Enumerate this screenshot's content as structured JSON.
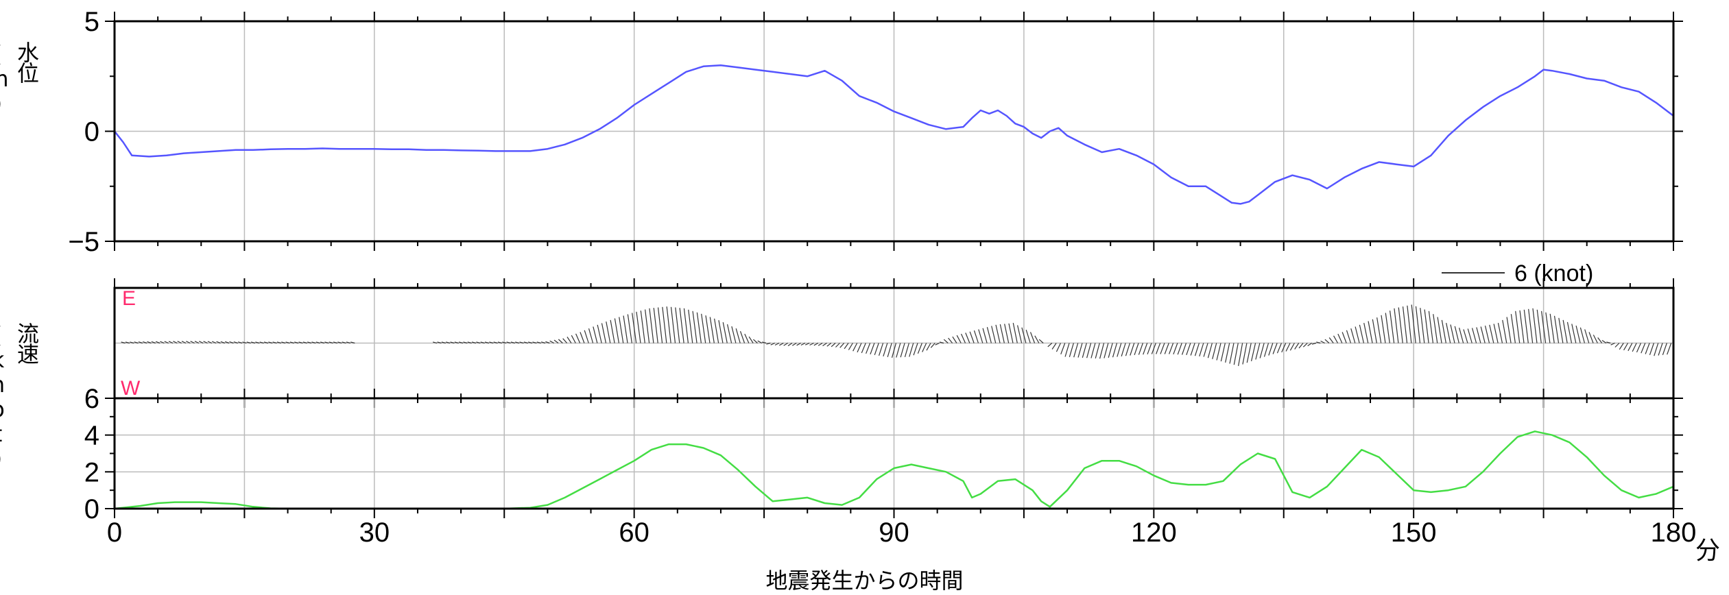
{
  "chart_data": [
    {
      "type": "line",
      "panel": "water-level",
      "ylabel": "水位 (m)",
      "ylim": [
        -5,
        5
      ],
      "yticks": [
        -5,
        0,
        5
      ],
      "ytick_labels": [
        "−5",
        "0",
        "5"
      ],
      "xlim": [
        0,
        180
      ],
      "color": "#5555ff",
      "series": [
        {
          "x": [
            0,
            1,
            2,
            4,
            6,
            8,
            10,
            12,
            14,
            16,
            18,
            20,
            22,
            24,
            26,
            28,
            30,
            32,
            34,
            36,
            38,
            40,
            42,
            44,
            46,
            48,
            50,
            52,
            54,
            56,
            58,
            60,
            62,
            64,
            66,
            68,
            70,
            72,
            74,
            76,
            78,
            80,
            82,
            84,
            86,
            88,
            90,
            92,
            94,
            96,
            98,
            99,
            100,
            101,
            102,
            103,
            104,
            105,
            106,
            107,
            108,
            109,
            110,
            112,
            114,
            116,
            118,
            120,
            122,
            124,
            126,
            128,
            129,
            130,
            131,
            132,
            134,
            136,
            138,
            140,
            142,
            144,
            146,
            148,
            150,
            152,
            154,
            156,
            158,
            160,
            162,
            164,
            165,
            166,
            168,
            170,
            172,
            174,
            176,
            178,
            180
          ],
          "y": [
            0,
            -0.5,
            -1.1,
            -1.15,
            -1.1,
            -1.0,
            -0.95,
            -0.9,
            -0.85,
            -0.85,
            -0.82,
            -0.8,
            -0.8,
            -0.78,
            -0.8,
            -0.8,
            -0.8,
            -0.82,
            -0.82,
            -0.85,
            -0.85,
            -0.87,
            -0.88,
            -0.9,
            -0.9,
            -0.9,
            -0.8,
            -0.6,
            -0.3,
            0.1,
            0.6,
            1.2,
            1.7,
            2.2,
            2.7,
            2.95,
            3.0,
            2.9,
            2.8,
            2.7,
            2.6,
            2.5,
            2.75,
            2.3,
            1.6,
            1.3,
            0.9,
            0.6,
            0.3,
            0.1,
            0.2,
            0.6,
            0.95,
            0.8,
            0.95,
            0.7,
            0.35,
            0.2,
            -0.1,
            -0.3,
            0.0,
            0.15,
            -0.2,
            -0.6,
            -0.95,
            -0.8,
            -1.1,
            -1.5,
            -2.1,
            -2.5,
            -2.5,
            -3.0,
            -3.25,
            -3.3,
            -3.2,
            -2.9,
            -2.3,
            -2.0,
            -2.2,
            -2.6,
            -2.1,
            -1.7,
            -1.4,
            -1.5,
            -1.6,
            -1.1,
            -0.2,
            0.5,
            1.1,
            1.6,
            2.0,
            2.5,
            2.8,
            2.75,
            2.6,
            2.4,
            2.3,
            2.0,
            1.8,
            1.3,
            0.7
          ]
        }
      ]
    },
    {
      "type": "bar",
      "panel": "current-direction",
      "ylabel": "流速 (knot)",
      "scale_label": "6 (knot)",
      "top_label": "E",
      "bottom_label": "W",
      "xlim": [
        0,
        180
      ],
      "color": "#333333",
      "label_color": "#ff2a6d",
      "x": [
        1,
        4,
        7,
        10,
        13,
        16,
        20,
        24,
        28,
        32,
        36,
        40,
        44,
        48,
        50,
        52,
        54,
        56,
        58,
        60,
        62,
        64,
        66,
        68,
        70,
        72,
        74,
        76,
        78,
        80,
        82,
        84,
        86,
        88,
        90,
        92,
        94,
        96,
        98,
        100,
        102,
        104,
        106,
        108,
        110,
        112,
        114,
        116,
        118,
        120,
        122,
        124,
        126,
        128,
        130,
        132,
        134,
        136,
        138,
        140,
        142,
        144,
        146,
        148,
        150,
        152,
        154,
        156,
        158,
        160,
        162,
        164,
        166,
        168,
        170,
        172,
        174,
        176,
        178,
        180
      ],
      "values": [
        0.1,
        0.15,
        0.2,
        0.2,
        0.15,
        0.1,
        0.05,
        0.05,
        0,
        0,
        0,
        0.02,
        0.05,
        0.05,
        0.15,
        0.5,
        1.2,
        2.0,
        2.7,
        3.3,
        3.8,
        4.0,
        3.8,
        3.2,
        2.5,
        1.6,
        0.4,
        -0.2,
        -0.3,
        -0.2,
        -0.3,
        -0.5,
        -1.0,
        -1.3,
        -1.6,
        -1.5,
        -0.8,
        0.4,
        1.0,
        1.5,
        2.0,
        2.2,
        1.2,
        -0.4,
        -1.5,
        -1.6,
        -1.7,
        -1.5,
        -1.3,
        -1.2,
        -1.2,
        -1.3,
        -1.5,
        -2.0,
        -2.5,
        -1.8,
        -1.2,
        -0.8,
        -0.3,
        0.4,
        1.2,
        2.0,
        2.8,
        3.8,
        4.2,
        3.5,
        2.2,
        1.5,
        1.8,
        2.2,
        3.5,
        3.8,
        3.2,
        2.3,
        1.5,
        0.3,
        -0.7,
        -1.0,
        -1.4,
        -1.2
      ]
    },
    {
      "type": "line",
      "panel": "current-speed",
      "ylabel": "流速 (knot)",
      "ylim": [
        0,
        6
      ],
      "yticks": [
        0,
        2,
        4,
        6
      ],
      "ytick_labels": [
        "0",
        "2",
        "4",
        "6"
      ],
      "xlabel": "地震発生からの時間",
      "x_unit": "分",
      "xlim": [
        0,
        180
      ],
      "xticks": [
        0,
        30,
        60,
        90,
        120,
        150,
        180
      ],
      "xtick_labels": [
        "0",
        "30",
        "60",
        "90",
        "120",
        "150",
        "180"
      ],
      "color": "#44dd44",
      "series": [
        {
          "x": [
            0,
            3,
            5,
            7,
            10,
            12,
            14,
            16,
            18,
            20,
            25,
            30,
            35,
            40,
            45,
            48,
            50,
            52,
            54,
            56,
            58,
            60,
            62,
            64,
            66,
            68,
            70,
            72,
            74,
            76,
            78,
            80,
            82,
            84,
            86,
            88,
            90,
            92,
            94,
            96,
            98,
            99,
            100,
            102,
            104,
            106,
            107,
            108,
            110,
            112,
            114,
            116,
            118,
            120,
            122,
            124,
            126,
            128,
            130,
            132,
            134,
            135,
            136,
            138,
            140,
            142,
            144,
            146,
            148,
            150,
            152,
            154,
            156,
            158,
            160,
            162,
            164,
            166,
            168,
            170,
            172,
            174,
            176,
            178,
            180
          ],
          "y": [
            0,
            0.15,
            0.3,
            0.35,
            0.35,
            0.3,
            0.25,
            0.1,
            0.02,
            0,
            0,
            0,
            0,
            0,
            0,
            0.05,
            0.2,
            0.6,
            1.1,
            1.6,
            2.1,
            2.6,
            3.2,
            3.5,
            3.5,
            3.3,
            2.9,
            2.1,
            1.2,
            0.4,
            0.5,
            0.6,
            0.3,
            0.2,
            0.6,
            1.6,
            2.2,
            2.4,
            2.2,
            2.0,
            1.5,
            0.6,
            0.8,
            1.5,
            1.6,
            1.0,
            0.4,
            0.1,
            1.0,
            2.2,
            2.6,
            2.6,
            2.3,
            1.8,
            1.4,
            1.3,
            1.3,
            1.5,
            2.4,
            3.0,
            2.7,
            1.8,
            0.9,
            0.6,
            1.2,
            2.2,
            3.2,
            2.8,
            1.9,
            1.0,
            0.9,
            1.0,
            1.2,
            2.0,
            3.0,
            3.9,
            4.2,
            4.0,
            3.6,
            2.8,
            1.8,
            1.0,
            0.6,
            0.8,
            1.2
          ]
        }
      ]
    }
  ],
  "labels": {
    "water_ylabel": "水位 (m)",
    "current_ylabel": "流速 (knot)",
    "xlabel": "地震発生からの時間",
    "x_unit": "分"
  }
}
